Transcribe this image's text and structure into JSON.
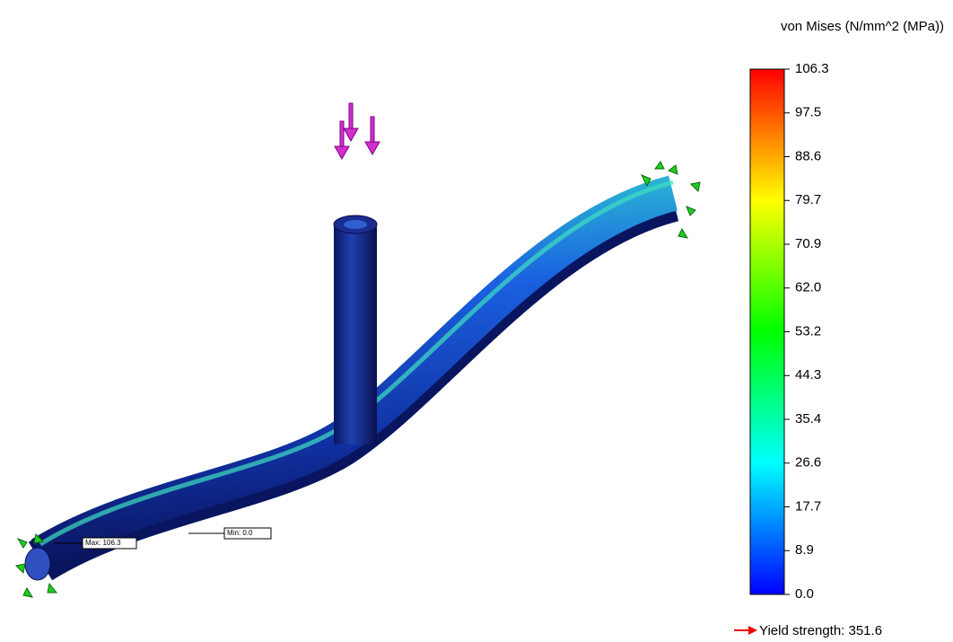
{
  "legend": {
    "title": "von Mises (N/mm^2 (MPa))",
    "ticks": [
      "106.3",
      "97.5",
      "88.6",
      "79.7",
      "70.9",
      "62.0",
      "53.2",
      "44.3",
      "35.4",
      "26.6",
      "17.7",
      "8.9",
      "0.0"
    ],
    "yield_strength": "Yield strength: 351.6"
  },
  "annotations": {
    "max": "Max: 106.3",
    "min": "Min: 0.0"
  }
}
